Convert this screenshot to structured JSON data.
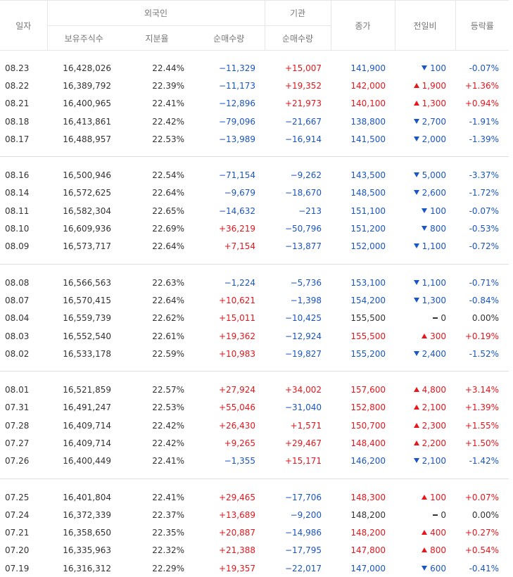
{
  "headers": {
    "date": "일자",
    "foreign": "외국인",
    "institution": "기관",
    "holdings": "보유주식수",
    "ratio": "지분율",
    "foreign_net": "순매수량",
    "inst_net": "순매수량",
    "close": "종가",
    "change": "전일비",
    "rate": "등락률"
  },
  "colors": {
    "up": "#e6161c",
    "down": "#1a55c4",
    "flat": "#333333"
  },
  "groups": [
    [
      {
        "date": "08.23",
        "holdings": "16,428,026",
        "ratio": "22.44%",
        "foreign_net": "−11,329",
        "inst_net": "+15,007",
        "close": "141,900",
        "dir": "down",
        "change": "100",
        "rate": "-0.07%"
      },
      {
        "date": "08.22",
        "holdings": "16,389,792",
        "ratio": "22.39%",
        "foreign_net": "−11,173",
        "inst_net": "+19,352",
        "close": "142,000",
        "dir": "up",
        "change": "1,900",
        "rate": "+1.36%"
      },
      {
        "date": "08.21",
        "holdings": "16,400,965",
        "ratio": "22.41%",
        "foreign_net": "−12,896",
        "inst_net": "+21,973",
        "close": "140,100",
        "dir": "up",
        "change": "1,300",
        "rate": "+0.94%"
      },
      {
        "date": "08.18",
        "holdings": "16,413,861",
        "ratio": "22.42%",
        "foreign_net": "−79,096",
        "inst_net": "−21,667",
        "close": "138,800",
        "dir": "down",
        "change": "2,700",
        "rate": "-1.91%"
      },
      {
        "date": "08.17",
        "holdings": "16,488,957",
        "ratio": "22.53%",
        "foreign_net": "−13,989",
        "inst_net": "−16,914",
        "close": "141,500",
        "dir": "down",
        "change": "2,000",
        "rate": "-1.39%"
      }
    ],
    [
      {
        "date": "08.16",
        "holdings": "16,500,946",
        "ratio": "22.54%",
        "foreign_net": "−71,154",
        "inst_net": "−9,262",
        "close": "143,500",
        "dir": "down",
        "change": "5,000",
        "rate": "-3.37%"
      },
      {
        "date": "08.14",
        "holdings": "16,572,625",
        "ratio": "22.64%",
        "foreign_net": "−9,679",
        "inst_net": "−18,670",
        "close": "148,500",
        "dir": "down",
        "change": "2,600",
        "rate": "-1.72%"
      },
      {
        "date": "08.11",
        "holdings": "16,582,304",
        "ratio": "22.65%",
        "foreign_net": "−14,632",
        "inst_net": "−213",
        "close": "151,100",
        "dir": "down",
        "change": "100",
        "rate": "-0.07%"
      },
      {
        "date": "08.10",
        "holdings": "16,609,936",
        "ratio": "22.69%",
        "foreign_net": "+36,219",
        "inst_net": "−50,796",
        "close": "151,200",
        "dir": "down",
        "change": "800",
        "rate": "-0.53%"
      },
      {
        "date": "08.09",
        "holdings": "16,573,717",
        "ratio": "22.64%",
        "foreign_net": "+7,154",
        "inst_net": "−13,877",
        "close": "152,000",
        "dir": "down",
        "change": "1,100",
        "rate": "-0.72%"
      }
    ],
    [
      {
        "date": "08.08",
        "holdings": "16,566,563",
        "ratio": "22.63%",
        "foreign_net": "−1,224",
        "inst_net": "−5,736",
        "close": "153,100",
        "dir": "down",
        "change": "1,100",
        "rate": "-0.71%"
      },
      {
        "date": "08.07",
        "holdings": "16,570,415",
        "ratio": "22.64%",
        "foreign_net": "+10,621",
        "inst_net": "−1,398",
        "close": "154,200",
        "dir": "down",
        "change": "1,300",
        "rate": "-0.84%"
      },
      {
        "date": "08.04",
        "holdings": "16,559,739",
        "ratio": "22.62%",
        "foreign_net": "+15,011",
        "inst_net": "−10,425",
        "close": "155,500",
        "dir": "flat",
        "change": "0",
        "rate": "0.00%"
      },
      {
        "date": "08.03",
        "holdings": "16,552,540",
        "ratio": "22.61%",
        "foreign_net": "+19,362",
        "inst_net": "−12,924",
        "close": "155,500",
        "dir": "up",
        "change": "300",
        "rate": "+0.19%"
      },
      {
        "date": "08.02",
        "holdings": "16,533,178",
        "ratio": "22.59%",
        "foreign_net": "+10,983",
        "inst_net": "−19,827",
        "close": "155,200",
        "dir": "down",
        "change": "2,400",
        "rate": "-1.52%"
      }
    ],
    [
      {
        "date": "08.01",
        "holdings": "16,521,859",
        "ratio": "22.57%",
        "foreign_net": "+27,924",
        "inst_net": "+34,002",
        "close": "157,600",
        "dir": "up",
        "change": "4,800",
        "rate": "+3.14%"
      },
      {
        "date": "07.31",
        "holdings": "16,491,247",
        "ratio": "22.53%",
        "foreign_net": "+55,046",
        "inst_net": "−31,040",
        "close": "152,800",
        "dir": "up",
        "change": "2,100",
        "rate": "+1.39%"
      },
      {
        "date": "07.28",
        "holdings": "16,409,714",
        "ratio": "22.42%",
        "foreign_net": "+26,430",
        "inst_net": "+1,571",
        "close": "150,700",
        "dir": "up",
        "change": "2,300",
        "rate": "+1.55%"
      },
      {
        "date": "07.27",
        "holdings": "16,409,714",
        "ratio": "22.42%",
        "foreign_net": "+9,265",
        "inst_net": "+29,467",
        "close": "148,400",
        "dir": "up",
        "change": "2,200",
        "rate": "+1.50%"
      },
      {
        "date": "07.26",
        "holdings": "16,400,449",
        "ratio": "22.41%",
        "foreign_net": "−1,355",
        "inst_net": "+15,171",
        "close": "146,200",
        "dir": "down",
        "change": "2,100",
        "rate": "-1.42%"
      }
    ],
    [
      {
        "date": "07.25",
        "holdings": "16,401,804",
        "ratio": "22.41%",
        "foreign_net": "+29,465",
        "inst_net": "−17,706",
        "close": "148,300",
        "dir": "up",
        "change": "100",
        "rate": "+0.07%"
      },
      {
        "date": "07.24",
        "holdings": "16,372,339",
        "ratio": "22.37%",
        "foreign_net": "+13,689",
        "inst_net": "−9,200",
        "close": "148,200",
        "dir": "flat",
        "change": "0",
        "rate": "0.00%"
      },
      {
        "date": "07.21",
        "holdings": "16,358,650",
        "ratio": "22.35%",
        "foreign_net": "+20,887",
        "inst_net": "−14,986",
        "close": "148,200",
        "dir": "up",
        "change": "400",
        "rate": "+0.27%"
      },
      {
        "date": "07.20",
        "holdings": "16,335,963",
        "ratio": "22.32%",
        "foreign_net": "+21,388",
        "inst_net": "−17,795",
        "close": "147,800",
        "dir": "up",
        "change": "800",
        "rate": "+0.54%"
      },
      {
        "date": "07.19",
        "holdings": "16,316,312",
        "ratio": "22.29%",
        "foreign_net": "+19,357",
        "inst_net": "−22,017",
        "close": "147,000",
        "dir": "down",
        "change": "600",
        "rate": "-0.41%"
      }
    ]
  ]
}
